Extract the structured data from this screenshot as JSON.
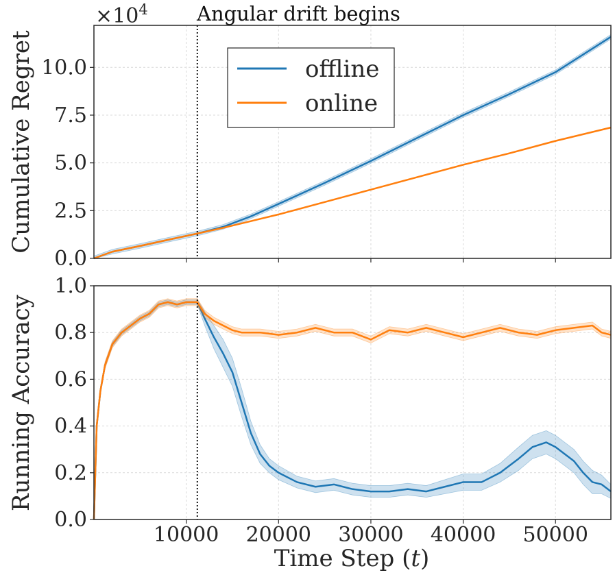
{
  "chart_data": [
    {
      "type": "line",
      "panel": "top",
      "ylabel": "Cumulative Regret",
      "xlabel": "",
      "scale_label": "×10^4",
      "scale_base": "×10",
      "scale_exp": "4",
      "annotation": "Angular drift begins",
      "drift_start": 11200,
      "xlim": [
        0,
        56000
      ],
      "ylim": [
        0,
        12.2
      ],
      "yticks": [
        0,
        2.5,
        5,
        7.5,
        10
      ],
      "ytick_labels": [
        "0.0",
        "2.5",
        "5.0",
        "7.5",
        "10.0"
      ],
      "xticks": [
        10000,
        20000,
        30000,
        40000,
        50000
      ],
      "legend": {
        "position": "upper-center",
        "entries": [
          "offline",
          "online"
        ]
      },
      "series": [
        {
          "name": "offline",
          "color": "#1f77b4",
          "x": [
            0,
            2000,
            5000,
            8000,
            11200,
            14000,
            17000,
            20000,
            25000,
            30000,
            35000,
            40000,
            45000,
            50000,
            56000
          ],
          "y": [
            0,
            0.35,
            0.65,
            0.97,
            1.3,
            1.65,
            2.2,
            2.85,
            3.95,
            5.1,
            6.3,
            7.5,
            8.6,
            9.75,
            11.6
          ],
          "band": 0.12
        },
        {
          "name": "online",
          "color": "#ff7f0e",
          "x": [
            0,
            2000,
            5000,
            8000,
            11200,
            14000,
            17000,
            20000,
            25000,
            30000,
            35000,
            40000,
            45000,
            50000,
            56000
          ],
          "y": [
            0,
            0.35,
            0.65,
            0.97,
            1.3,
            1.6,
            1.95,
            2.3,
            2.95,
            3.6,
            4.25,
            4.9,
            5.5,
            6.15,
            6.85
          ],
          "band": 0.03
        }
      ]
    },
    {
      "type": "line",
      "panel": "bottom",
      "ylabel": "Running Accuracy",
      "xlabel_prefix": "Time Step (",
      "xlabel_var": "t",
      "xlabel_suffix": ")",
      "drift_start": 11200,
      "xlim": [
        0,
        56000
      ],
      "ylim": [
        0,
        1.0
      ],
      "yticks": [
        0,
        0.2,
        0.4,
        0.6,
        0.8,
        1.0
      ],
      "ytick_labels": [
        "0.0",
        "0.2",
        "0.4",
        "0.6",
        "0.8",
        "1.0"
      ],
      "xticks": [
        10000,
        20000,
        30000,
        40000,
        50000
      ],
      "xtick_labels": [
        "10000",
        "20000",
        "30000",
        "40000",
        "50000"
      ],
      "series": [
        {
          "name": "offline",
          "color": "#1f77b4",
          "x": [
            0,
            300,
            700,
            1200,
            2000,
            3000,
            4000,
            5000,
            6000,
            7000,
            8000,
            9000,
            10000,
            11200,
            12000,
            13000,
            14000,
            15000,
            16000,
            17000,
            18000,
            19000,
            20000,
            22000,
            24000,
            26000,
            28000,
            30000,
            32000,
            34000,
            36000,
            38000,
            40000,
            42000,
            44000,
            46000,
            47500,
            49000,
            50000,
            51000,
            52000,
            53000,
            54000,
            55000,
            56000
          ],
          "y": [
            0.0,
            0.4,
            0.55,
            0.66,
            0.75,
            0.8,
            0.83,
            0.86,
            0.88,
            0.92,
            0.93,
            0.92,
            0.93,
            0.93,
            0.86,
            0.78,
            0.71,
            0.63,
            0.5,
            0.37,
            0.28,
            0.23,
            0.2,
            0.16,
            0.14,
            0.15,
            0.13,
            0.12,
            0.12,
            0.13,
            0.12,
            0.14,
            0.16,
            0.16,
            0.2,
            0.26,
            0.31,
            0.33,
            0.31,
            0.28,
            0.25,
            0.2,
            0.16,
            0.15,
            0.12
          ],
          "band": [
            0.0,
            0.01,
            0.01,
            0.01,
            0.01,
            0.01,
            0.01,
            0.01,
            0.01,
            0.01,
            0.01,
            0.01,
            0.01,
            0.01,
            0.03,
            0.05,
            0.06,
            0.06,
            0.06,
            0.05,
            0.04,
            0.03,
            0.03,
            0.025,
            0.025,
            0.025,
            0.025,
            0.025,
            0.025,
            0.025,
            0.025,
            0.03,
            0.035,
            0.035,
            0.04,
            0.05,
            0.05,
            0.05,
            0.05,
            0.05,
            0.05,
            0.05,
            0.05,
            0.04,
            0.03
          ]
        },
        {
          "name": "online",
          "color": "#ff7f0e",
          "x": [
            0,
            300,
            700,
            1200,
            2000,
            3000,
            4000,
            5000,
            6000,
            7000,
            8000,
            9000,
            10000,
            11200,
            12000,
            13000,
            14000,
            15000,
            16000,
            18000,
            20000,
            22000,
            24000,
            26000,
            28000,
            30000,
            32000,
            34000,
            36000,
            38000,
            40000,
            42000,
            44000,
            46000,
            48000,
            50000,
            52000,
            54000,
            55000,
            56000
          ],
          "y": [
            0.0,
            0.4,
            0.55,
            0.66,
            0.75,
            0.8,
            0.83,
            0.86,
            0.88,
            0.92,
            0.93,
            0.92,
            0.93,
            0.93,
            0.88,
            0.85,
            0.83,
            0.81,
            0.8,
            0.8,
            0.79,
            0.8,
            0.82,
            0.8,
            0.8,
            0.77,
            0.81,
            0.8,
            0.82,
            0.8,
            0.78,
            0.8,
            0.82,
            0.8,
            0.79,
            0.81,
            0.82,
            0.83,
            0.8,
            0.79
          ],
          "band": 0.015
        }
      ]
    }
  ]
}
